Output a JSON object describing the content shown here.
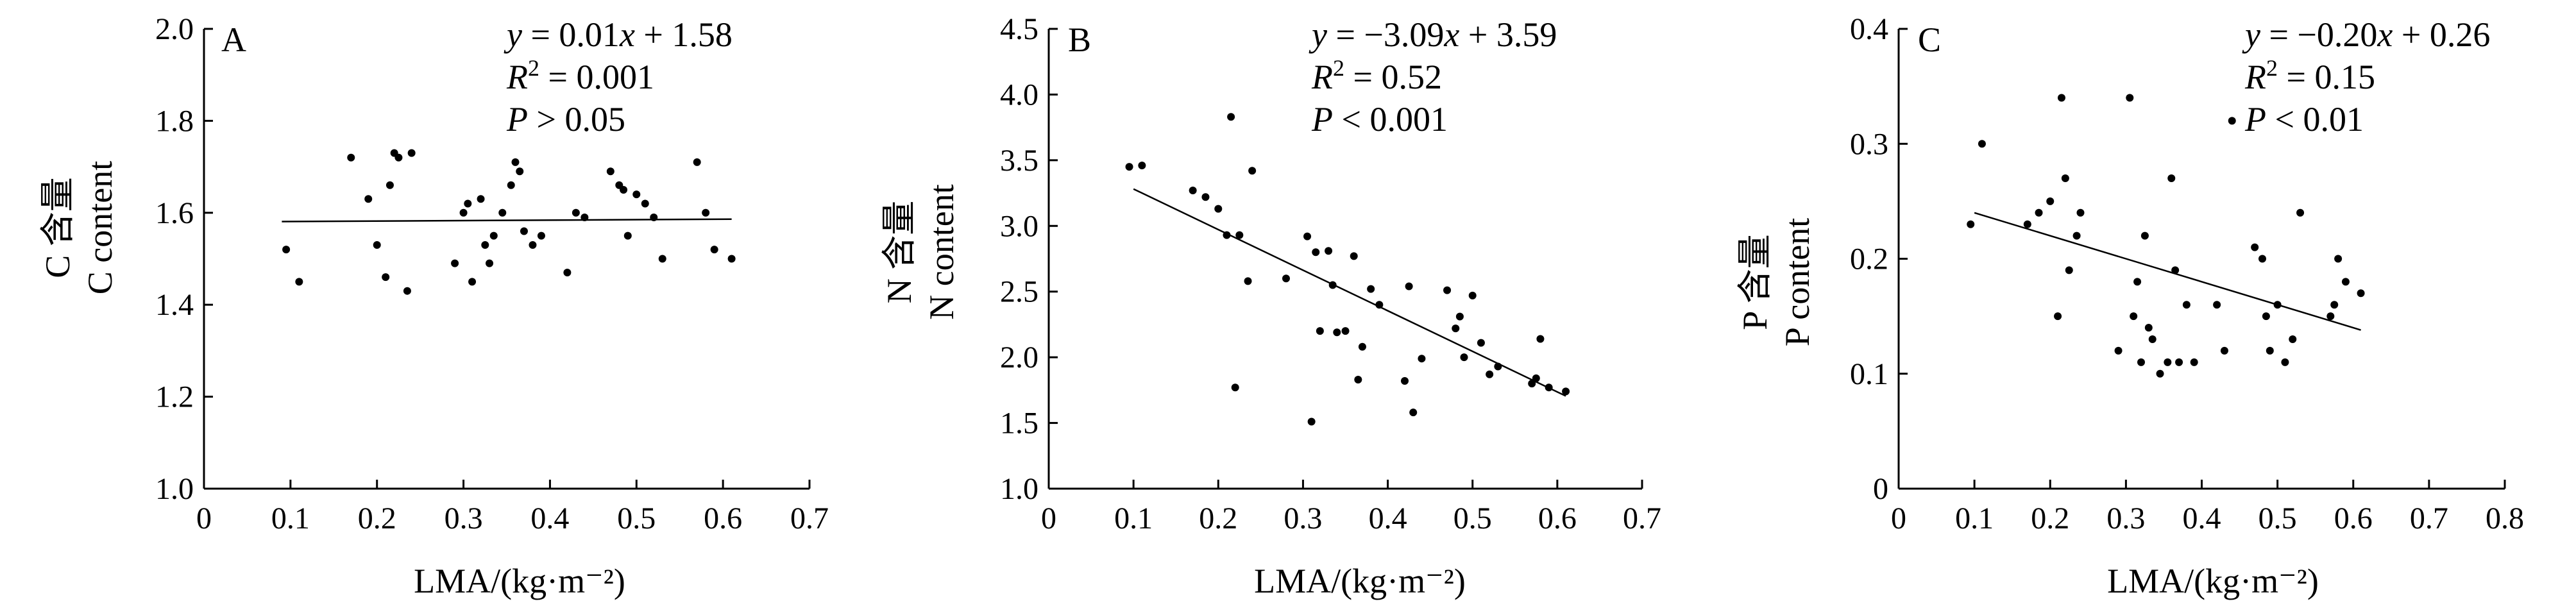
{
  "chart_data": [
    {
      "type": "scatter",
      "panel_label": "A",
      "ylabel_cn": "C 含量",
      "ylabel_en": "C content",
      "xlabel": "LMA/(kg·m⁻²)",
      "xlim": [
        0,
        0.7
      ],
      "ylim": [
        1.0,
        2.0
      ],
      "xticks": [
        "0",
        "0.1",
        "0.2",
        "0.3",
        "0.4",
        "0.5",
        "0.6",
        "0.7"
      ],
      "yticks": [
        "1.0",
        "1.2",
        "1.4",
        "1.6",
        "1.8",
        "2.0"
      ],
      "equation": {
        "y": "y",
        "rhs": " = 0.01",
        "x": "x",
        "tail": " + 1.58"
      },
      "r2": {
        "r": "R",
        "sup": "2",
        "val": " = 0.001"
      },
      "p": {
        "p": "P",
        "val": " > 0.05"
      },
      "fit": {
        "slope": 0.01,
        "intercept": 1.58,
        "x_range": [
          0.09,
          0.61
        ]
      },
      "x": [
        0.095,
        0.11,
        0.17,
        0.19,
        0.2,
        0.21,
        0.215,
        0.22,
        0.225,
        0.235,
        0.24,
        0.29,
        0.3,
        0.305,
        0.31,
        0.32,
        0.325,
        0.33,
        0.335,
        0.345,
        0.355,
        0.36,
        0.365,
        0.37,
        0.38,
        0.39,
        0.42,
        0.43,
        0.44,
        0.47,
        0.48,
        0.485,
        0.49,
        0.5,
        0.51,
        0.52,
        0.53,
        0.57,
        0.58,
        0.59,
        0.61
      ],
      "y": [
        1.52,
        1.45,
        1.72,
        1.63,
        1.53,
        1.46,
        1.66,
        1.73,
        1.72,
        1.43,
        1.73,
        1.49,
        1.6,
        1.62,
        1.45,
        1.63,
        1.53,
        1.49,
        1.55,
        1.6,
        1.66,
        1.71,
        1.69,
        1.56,
        1.53,
        1.55,
        1.47,
        1.6,
        1.59,
        1.69,
        1.66,
        1.65,
        1.55,
        1.64,
        1.62,
        1.59,
        1.5,
        1.71,
        1.6,
        1.52,
        1.5
      ]
    },
    {
      "type": "scatter",
      "panel_label": "B",
      "ylabel_cn": "N 含量",
      "ylabel_en": "N content",
      "xlabel": "LMA/(kg·m⁻²)",
      "xlim": [
        0,
        0.7
      ],
      "ylim": [
        1.0,
        4.5
      ],
      "xticks": [
        "0",
        "0.1",
        "0.2",
        "0.3",
        "0.4",
        "0.5",
        "0.6",
        "0.7"
      ],
      "yticks": [
        "1.0",
        "1.5",
        "2.0",
        "2.5",
        "3.0",
        "3.5",
        "4.0",
        "4.5"
      ],
      "equation": {
        "y": "y",
        "rhs": " = −3.09",
        "x": "x",
        "tail": " + 3.59"
      },
      "r2": {
        "r": "R",
        "sup": "2",
        "val": " = 0.52"
      },
      "p": {
        "p": "P",
        "val": " < 0.001"
      },
      "fit": {
        "slope": -3.09,
        "intercept": 3.59,
        "x_range": [
          0.1,
          0.61
        ]
      },
      "x": [
        0.095,
        0.11,
        0.17,
        0.185,
        0.2,
        0.21,
        0.215,
        0.22,
        0.225,
        0.235,
        0.24,
        0.28,
        0.305,
        0.31,
        0.315,
        0.32,
        0.33,
        0.335,
        0.34,
        0.35,
        0.36,
        0.365,
        0.37,
        0.38,
        0.39,
        0.42,
        0.425,
        0.43,
        0.44,
        0.47,
        0.48,
        0.485,
        0.49,
        0.5,
        0.51,
        0.52,
        0.53,
        0.57,
        0.575,
        0.58,
        0.59,
        0.61
      ],
      "y": [
        3.45,
        3.46,
        3.27,
        3.22,
        3.13,
        2.93,
        3.83,
        1.77,
        2.93,
        2.58,
        3.42,
        2.6,
        2.92,
        1.51,
        2.8,
        2.2,
        2.81,
        2.55,
        2.19,
        2.2,
        2.77,
        1.83,
        2.08,
        2.52,
        2.4,
        1.82,
        2.54,
        1.58,
        1.99,
        2.51,
        2.22,
        2.31,
        2.0,
        2.47,
        2.11,
        1.87,
        1.93,
        1.8,
        1.84,
        2.14,
        1.77,
        1.74
      ]
    },
    {
      "type": "scatter",
      "panel_label": "C",
      "ylabel_cn": "P 含量",
      "ylabel_en": "P content",
      "xlabel": "LMA/(kg·m⁻²)",
      "xlim": [
        0,
        0.8
      ],
      "ylim": [
        0,
        0.4
      ],
      "xticks": [
        "0",
        "0.1",
        "0.2",
        "0.3",
        "0.4",
        "0.5",
        "0.6",
        "0.7",
        "0.8"
      ],
      "yticks": [
        "0",
        "0.1",
        "0.2",
        "0.3",
        "0.4"
      ],
      "equation": {
        "y": "y",
        "rhs": " = −0.20",
        "x": "x",
        "tail": " + 0.26"
      },
      "r2": {
        "r": "R",
        "sup": "2",
        "val": " = 0.15"
      },
      "p": {
        "p": "P",
        "val": " < 0.01"
      },
      "fit": {
        "slope": -0.2,
        "intercept": 0.26,
        "x_range": [
          0.1,
          0.61
        ]
      },
      "x": [
        0.095,
        0.11,
        0.17,
        0.185,
        0.2,
        0.21,
        0.215,
        0.22,
        0.225,
        0.235,
        0.24,
        0.29,
        0.305,
        0.31,
        0.315,
        0.32,
        0.325,
        0.33,
        0.335,
        0.345,
        0.355,
        0.36,
        0.365,
        0.37,
        0.38,
        0.39,
        0.42,
        0.43,
        0.44,
        0.47,
        0.48,
        0.485,
        0.49,
        0.5,
        0.51,
        0.52,
        0.53,
        0.57,
        0.575,
        0.58,
        0.59,
        0.61
      ],
      "y": [
        0.23,
        0.3,
        0.23,
        0.24,
        0.25,
        0.15,
        0.34,
        0.27,
        0.19,
        0.22,
        0.24,
        0.12,
        0.34,
        0.15,
        0.18,
        0.11,
        0.22,
        0.14,
        0.13,
        0.1,
        0.11,
        0.27,
        0.19,
        0.11,
        0.16,
        0.11,
        0.16,
        0.12,
        0.32,
        0.21,
        0.2,
        0.15,
        0.12,
        0.16,
        0.11,
        0.13,
        0.24,
        0.15,
        0.16,
        0.2,
        0.18,
        0.17
      ]
    }
  ]
}
